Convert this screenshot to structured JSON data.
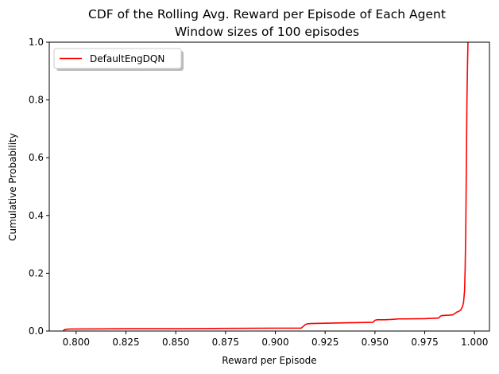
{
  "chart_data": {
    "type": "line",
    "title": "CDF of the Rolling Avg. Reward per Episode of Each Agent",
    "subtitle": "Window sizes of 100 episodes",
    "xlabel": "Reward per Episode",
    "ylabel": "Cumulative Probability",
    "xlim": [
      0.7865,
      1.0075
    ],
    "ylim": [
      0,
      1.0
    ],
    "xticks": [
      0.8,
      0.825,
      0.85,
      0.875,
      0.9,
      0.925,
      0.95,
      0.975,
      1.0
    ],
    "xtick_labels": [
      "0.800",
      "0.825",
      "0.850",
      "0.875",
      "0.900",
      "0.925",
      "0.950",
      "0.975",
      "1.000"
    ],
    "yticks": [
      0.0,
      0.2,
      0.4,
      0.6,
      0.8,
      1.0
    ],
    "ytick_labels": [
      "0.0",
      "0.2",
      "0.4",
      "0.6",
      "0.8",
      "1.0"
    ],
    "grid": false,
    "legend_position": "top-left",
    "series": [
      {
        "name": "DefaultEngDQN",
        "color": "#ff0000",
        "x": [
          0.7935,
          0.794,
          0.795,
          0.797,
          0.8,
          0.825,
          0.85,
          0.875,
          0.9,
          0.913,
          0.914,
          0.915,
          0.916,
          0.918,
          0.925,
          0.94,
          0.949,
          0.95,
          0.951,
          0.955,
          0.958,
          0.962,
          0.965,
          0.975,
          0.982,
          0.983,
          0.984,
          0.987,
          0.989,
          0.99,
          0.991,
          0.992,
          0.993,
          0.994,
          0.9945,
          0.995,
          0.9953,
          0.9956,
          0.9958,
          0.996,
          0.9962,
          0.9965,
          0.9967
        ],
        "y": [
          0.0,
          0.004,
          0.006,
          0.007,
          0.007,
          0.008,
          0.008,
          0.009,
          0.01,
          0.01,
          0.016,
          0.022,
          0.025,
          0.026,
          0.027,
          0.029,
          0.03,
          0.037,
          0.039,
          0.039,
          0.04,
          0.042,
          0.042,
          0.043,
          0.045,
          0.052,
          0.054,
          0.055,
          0.056,
          0.06,
          0.065,
          0.068,
          0.072,
          0.085,
          0.1,
          0.14,
          0.22,
          0.35,
          0.5,
          0.65,
          0.8,
          0.93,
          1.0
        ]
      }
    ]
  }
}
